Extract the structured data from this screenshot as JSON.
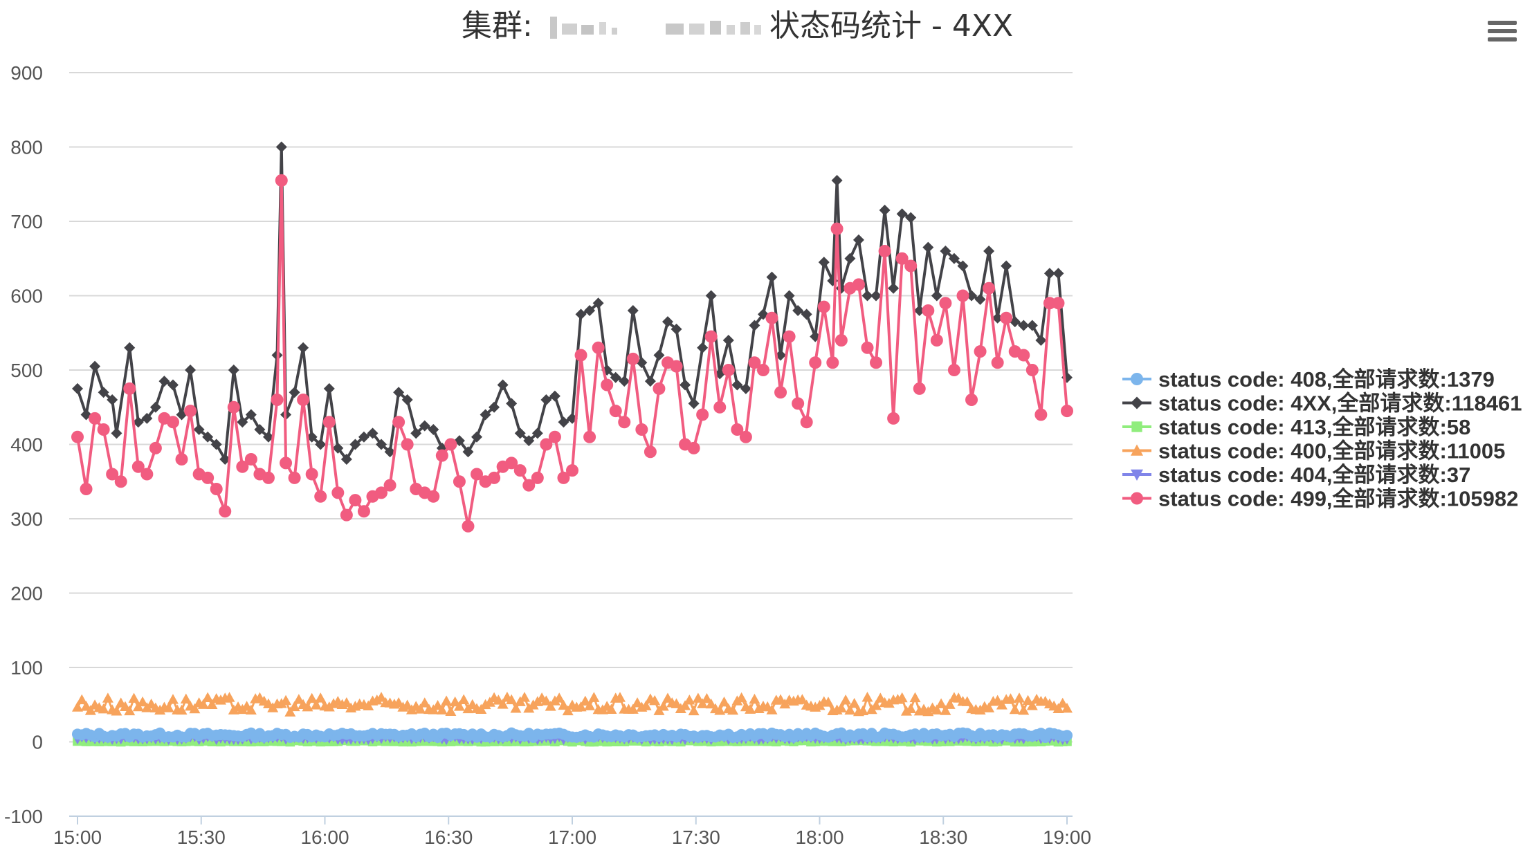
{
  "chart_data": {
    "type": "line",
    "title_prefix": "集群:",
    "title_suffix": "状态码统计 - 4XX",
    "menu_icon": "hamburger-menu-icon",
    "ylim": [
      -100,
      900
    ],
    "yticks": [
      -100,
      0,
      100,
      200,
      300,
      400,
      500,
      600,
      700,
      800,
      900
    ],
    "xlim": [
      "15:00",
      "19:00"
    ],
    "xticks": [
      "15:00",
      "15:30",
      "16:00",
      "16:30",
      "17:00",
      "17:30",
      "18:00",
      "18:30",
      "19:00"
    ],
    "grid": true,
    "legend_position": "right",
    "series": [
      {
        "name": "status code: 408,全部请求数:1379",
        "color": "#7cb5ec",
        "marker": "circle",
        "level": 9,
        "spread": 3
      },
      {
        "name": "status code: 4XX,全部请求数:118461",
        "color": "#434348",
        "marker": "diamond",
        "values": [
          [
            0,
            475
          ],
          [
            10,
            440
          ],
          [
            20,
            505
          ],
          [
            30,
            470
          ],
          [
            40,
            460
          ],
          [
            45,
            415
          ],
          [
            60,
            530
          ],
          [
            70,
            430
          ],
          [
            80,
            435
          ],
          [
            90,
            450
          ],
          [
            100,
            485
          ],
          [
            110,
            480
          ],
          [
            120,
            440
          ],
          [
            130,
            500
          ],
          [
            140,
            420
          ],
          [
            150,
            410
          ],
          [
            160,
            400
          ],
          [
            170,
            380
          ],
          [
            180,
            500
          ],
          [
            190,
            430
          ],
          [
            200,
            440
          ],
          [
            210,
            420
          ],
          [
            220,
            410
          ],
          [
            230,
            520
          ],
          [
            235,
            800
          ],
          [
            240,
            440
          ],
          [
            250,
            470
          ],
          [
            260,
            530
          ],
          [
            270,
            410
          ],
          [
            280,
            400
          ],
          [
            290,
            475
          ],
          [
            300,
            395
          ],
          [
            310,
            380
          ],
          [
            320,
            400
          ],
          [
            330,
            410
          ],
          [
            340,
            415
          ],
          [
            350,
            400
          ],
          [
            360,
            390
          ],
          [
            370,
            470
          ],
          [
            380,
            460
          ],
          [
            390,
            415
          ],
          [
            400,
            425
          ],
          [
            410,
            420
          ],
          [
            420,
            395
          ],
          [
            430,
            400
          ],
          [
            440,
            405
          ],
          [
            450,
            390
          ],
          [
            460,
            410
          ],
          [
            470,
            440
          ],
          [
            480,
            450
          ],
          [
            490,
            480
          ],
          [
            500,
            455
          ],
          [
            510,
            415
          ],
          [
            520,
            405
          ],
          [
            530,
            415
          ],
          [
            540,
            460
          ],
          [
            550,
            465
          ],
          [
            560,
            430
          ],
          [
            570,
            435
          ],
          [
            580,
            575
          ],
          [
            590,
            580
          ],
          [
            600,
            590
          ],
          [
            610,
            500
          ],
          [
            620,
            490
          ],
          [
            630,
            485
          ],
          [
            640,
            580
          ],
          [
            650,
            510
          ],
          [
            660,
            485
          ],
          [
            670,
            520
          ],
          [
            680,
            565
          ],
          [
            690,
            555
          ],
          [
            700,
            480
          ],
          [
            710,
            455
          ],
          [
            720,
            530
          ],
          [
            730,
            600
          ],
          [
            740,
            495
          ],
          [
            750,
            540
          ],
          [
            760,
            480
          ],
          [
            770,
            475
          ],
          [
            780,
            560
          ],
          [
            790,
            575
          ],
          [
            800,
            625
          ],
          [
            810,
            520
          ],
          [
            820,
            600
          ],
          [
            830,
            580
          ],
          [
            840,
            575
          ],
          [
            850,
            545
          ],
          [
            860,
            645
          ],
          [
            870,
            620
          ],
          [
            875,
            755
          ],
          [
            880,
            610
          ],
          [
            890,
            650
          ],
          [
            900,
            675
          ],
          [
            910,
            600
          ],
          [
            920,
            600
          ],
          [
            930,
            715
          ],
          [
            940,
            610
          ],
          [
            950,
            710
          ],
          [
            960,
            705
          ],
          [
            970,
            580
          ],
          [
            980,
            665
          ],
          [
            990,
            600
          ],
          [
            1000,
            660
          ],
          [
            1010,
            650
          ],
          [
            1020,
            640
          ],
          [
            1030,
            600
          ],
          [
            1040,
            595
          ],
          [
            1050,
            660
          ],
          [
            1060,
            570
          ],
          [
            1070,
            640
          ],
          [
            1080,
            565
          ],
          [
            1090,
            560
          ],
          [
            1100,
            560
          ],
          [
            1110,
            540
          ],
          [
            1120,
            630
          ],
          [
            1130,
            630
          ],
          [
            1140,
            490
          ]
        ]
      },
      {
        "name": "status code: 413,全部请求数:58",
        "color": "#90ed7d",
        "marker": "square",
        "level": 1,
        "spread": 1
      },
      {
        "name": "status code: 400,全部请求数:11005",
        "color": "#f7a35c",
        "marker": "triangle",
        "level": 50,
        "spread": 10
      },
      {
        "name": "status code: 404,全部请求数:37",
        "color": "#8085e9",
        "marker": "triangle-down",
        "level": 5,
        "spread": 2
      },
      {
        "name": "status code: 499,全部请求数:105982",
        "color": "#f15c80",
        "marker": "circle",
        "values": [
          [
            0,
            410
          ],
          [
            10,
            340
          ],
          [
            20,
            435
          ],
          [
            30,
            420
          ],
          [
            40,
            360
          ],
          [
            50,
            350
          ],
          [
            60,
            475
          ],
          [
            70,
            370
          ],
          [
            80,
            360
          ],
          [
            90,
            395
          ],
          [
            100,
            435
          ],
          [
            110,
            430
          ],
          [
            120,
            380
          ],
          [
            130,
            445
          ],
          [
            140,
            360
          ],
          [
            150,
            355
          ],
          [
            160,
            340
          ],
          [
            170,
            310
          ],
          [
            180,
            450
          ],
          [
            190,
            370
          ],
          [
            200,
            380
          ],
          [
            210,
            360
          ],
          [
            220,
            355
          ],
          [
            230,
            460
          ],
          [
            235,
            755
          ],
          [
            240,
            375
          ],
          [
            250,
            355
          ],
          [
            260,
            460
          ],
          [
            270,
            360
          ],
          [
            280,
            330
          ],
          [
            290,
            430
          ],
          [
            300,
            335
          ],
          [
            310,
            305
          ],
          [
            320,
            325
          ],
          [
            330,
            310
          ],
          [
            340,
            330
          ],
          [
            350,
            335
          ],
          [
            360,
            345
          ],
          [
            370,
            430
          ],
          [
            380,
            400
          ],
          [
            390,
            340
          ],
          [
            400,
            335
          ],
          [
            410,
            330
          ],
          [
            420,
            385
          ],
          [
            430,
            400
          ],
          [
            440,
            350
          ],
          [
            450,
            290
          ],
          [
            460,
            360
          ],
          [
            470,
            350
          ],
          [
            480,
            355
          ],
          [
            490,
            370
          ],
          [
            500,
            375
          ],
          [
            510,
            365
          ],
          [
            520,
            345
          ],
          [
            530,
            355
          ],
          [
            540,
            400
          ],
          [
            550,
            410
          ],
          [
            560,
            355
          ],
          [
            570,
            365
          ],
          [
            580,
            520
          ],
          [
            590,
            410
          ],
          [
            600,
            530
          ],
          [
            610,
            480
          ],
          [
            620,
            445
          ],
          [
            630,
            430
          ],
          [
            640,
            515
          ],
          [
            650,
            420
          ],
          [
            660,
            390
          ],
          [
            670,
            475
          ],
          [
            680,
            510
          ],
          [
            690,
            505
          ],
          [
            700,
            400
          ],
          [
            710,
            395
          ],
          [
            720,
            440
          ],
          [
            730,
            545
          ],
          [
            740,
            450
          ],
          [
            750,
            500
          ],
          [
            760,
            420
          ],
          [
            770,
            410
          ],
          [
            780,
            510
          ],
          [
            790,
            500
          ],
          [
            800,
            570
          ],
          [
            810,
            470
          ],
          [
            820,
            545
          ],
          [
            830,
            455
          ],
          [
            840,
            430
          ],
          [
            850,
            510
          ],
          [
            860,
            585
          ],
          [
            870,
            510
          ],
          [
            875,
            690
          ],
          [
            880,
            540
          ],
          [
            890,
            610
          ],
          [
            900,
            615
          ],
          [
            910,
            530
          ],
          [
            920,
            510
          ],
          [
            930,
            660
          ],
          [
            940,
            435
          ],
          [
            950,
            650
          ],
          [
            960,
            640
          ],
          [
            970,
            475
          ],
          [
            980,
            580
          ],
          [
            990,
            540
          ],
          [
            1000,
            590
          ],
          [
            1010,
            500
          ],
          [
            1020,
            600
          ],
          [
            1030,
            460
          ],
          [
            1040,
            525
          ],
          [
            1050,
            610
          ],
          [
            1060,
            510
          ],
          [
            1070,
            570
          ],
          [
            1080,
            525
          ],
          [
            1090,
            520
          ],
          [
            1100,
            500
          ],
          [
            1110,
            440
          ],
          [
            1120,
            590
          ],
          [
            1130,
            590
          ],
          [
            1140,
            445
          ]
        ]
      }
    ]
  }
}
